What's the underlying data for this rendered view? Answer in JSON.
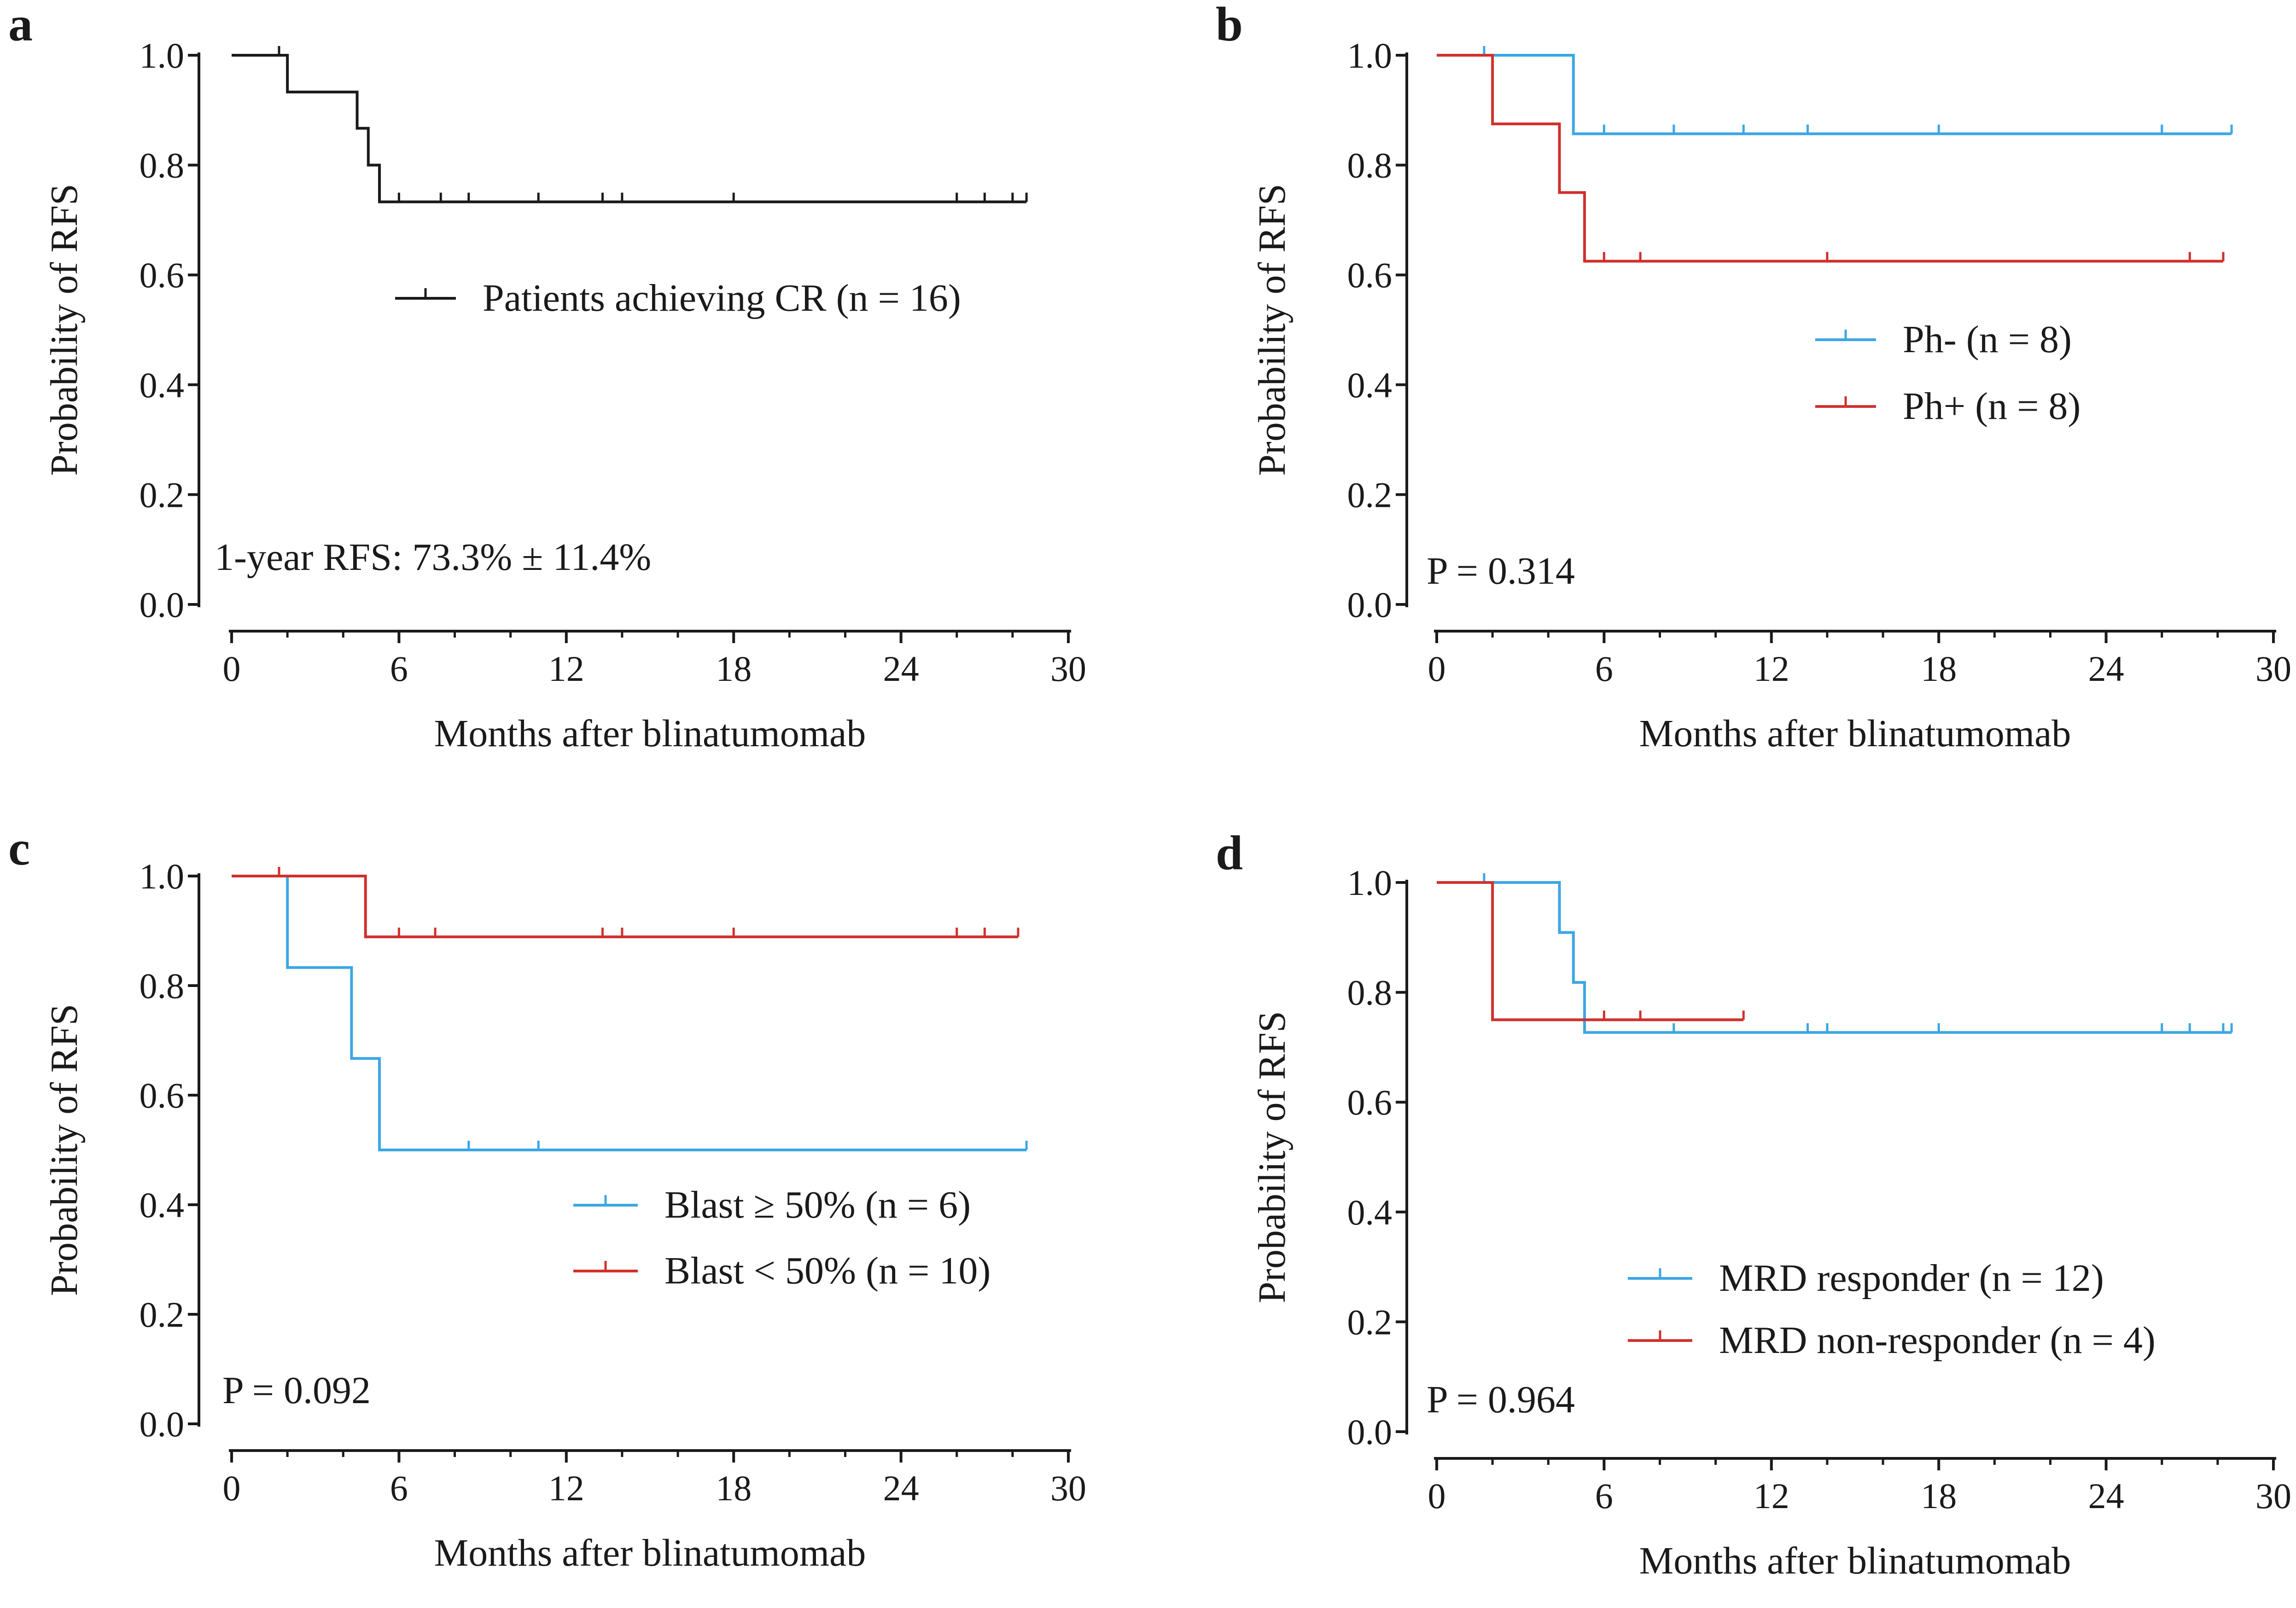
{
  "colors": {
    "black": "#1a1a1a",
    "blue": "#3ca6e4",
    "red": "#d0312d"
  },
  "chart_data": [
    {
      "id": "a",
      "panel_label": "a",
      "type": "line",
      "subtype": "kaplan-meier",
      "xlabel": "Months after blinatumomab",
      "ylabel": "Probability of RFS",
      "xlim": [
        0,
        30
      ],
      "ylim": [
        0,
        1
      ],
      "xticks": [
        "0",
        "6",
        "12",
        "18",
        "24",
        "30"
      ],
      "yticks": [
        "0.0",
        "0.2",
        "0.4",
        "0.6",
        "0.8",
        "1.0"
      ],
      "legend_position": "center-right",
      "annotation": "1-year RFS: 73.3% ± 11.4%",
      "annotation_position": "bottom-left",
      "series": [
        {
          "name": "Patients achieving CR (n = 16)",
          "color": "#1a1a1a",
          "steps": [
            [
              0,
              1.0
            ],
            [
              2.0,
              0.933
            ],
            [
              4.5,
              0.867
            ],
            [
              4.9,
              0.8
            ],
            [
              5.3,
              0.733
            ],
            [
              28.5,
              0.733
            ]
          ],
          "censor_marks": [
            [
              1.7,
              1.0
            ],
            [
              6.0,
              0.733
            ],
            [
              7.5,
              0.733
            ],
            [
              8.5,
              0.733
            ],
            [
              11.0,
              0.733
            ],
            [
              13.3,
              0.733
            ],
            [
              14.0,
              0.733
            ],
            [
              18.0,
              0.733
            ],
            [
              26.0,
              0.733
            ],
            [
              27.0,
              0.733
            ],
            [
              28.0,
              0.733
            ],
            [
              28.5,
              0.733
            ]
          ]
        }
      ]
    },
    {
      "id": "b",
      "panel_label": "b",
      "type": "line",
      "subtype": "kaplan-meier",
      "xlabel": "Months after blinatumomab",
      "ylabel": "Probability of RFS",
      "xlim": [
        0,
        30
      ],
      "ylim": [
        0,
        1
      ],
      "xticks": [
        "0",
        "6",
        "12",
        "18",
        "24",
        "30"
      ],
      "yticks": [
        "0.0",
        "0.2",
        "0.4",
        "0.6",
        "0.8",
        "1.0"
      ],
      "legend_position": "center-right",
      "annotation": "P = 0.314",
      "annotation_position": "bottom-left",
      "series": [
        {
          "name": "Ph- (n = 8)",
          "color": "#3ca6e4",
          "steps": [
            [
              0,
              1.0
            ],
            [
              4.9,
              0.857
            ],
            [
              28.5,
              0.857
            ]
          ],
          "censor_marks": [
            [
              1.7,
              1.0
            ],
            [
              6.0,
              0.857
            ],
            [
              8.5,
              0.857
            ],
            [
              11.0,
              0.857
            ],
            [
              13.3,
              0.857
            ],
            [
              18.0,
              0.857
            ],
            [
              26.0,
              0.857
            ],
            [
              28.5,
              0.857
            ]
          ]
        },
        {
          "name": "Ph+ (n = 8)",
          "color": "#d0312d",
          "steps": [
            [
              0,
              1.0
            ],
            [
              2.0,
              0.875
            ],
            [
              4.4,
              0.75
            ],
            [
              5.3,
              0.625
            ],
            [
              28.2,
              0.625
            ]
          ],
          "censor_marks": [
            [
              6.0,
              0.625
            ],
            [
              7.3,
              0.625
            ],
            [
              14.0,
              0.625
            ],
            [
              27.0,
              0.625
            ],
            [
              28.2,
              0.625
            ]
          ]
        }
      ]
    },
    {
      "id": "c",
      "panel_label": "c",
      "type": "line",
      "subtype": "kaplan-meier",
      "xlabel": "Months after blinatumomab",
      "ylabel": "Probability of RFS",
      "xlim": [
        0,
        30
      ],
      "ylim": [
        0,
        1
      ],
      "xticks": [
        "0",
        "6",
        "12",
        "18",
        "24",
        "30"
      ],
      "yticks": [
        "0.0",
        "0.2",
        "0.4",
        "0.6",
        "0.8",
        "1.0"
      ],
      "legend_position": "bottom-right",
      "annotation": "P = 0.092",
      "annotation_position": "bottom-left",
      "series": [
        {
          "name": "Blast ≥ 50% (n = 6)",
          "color": "#3ca6e4",
          "steps": [
            [
              0,
              1.0
            ],
            [
              2.0,
              0.833
            ],
            [
              4.3,
              0.667
            ],
            [
              5.3,
              0.5
            ],
            [
              28.5,
              0.5
            ]
          ],
          "censor_marks": [
            [
              8.5,
              0.5
            ],
            [
              11.0,
              0.5
            ],
            [
              28.5,
              0.5
            ]
          ]
        },
        {
          "name": "Blast < 50% (n = 10)",
          "color": "#d0312d",
          "steps": [
            [
              0,
              1.0
            ],
            [
              4.8,
              0.889
            ],
            [
              28.2,
              0.889
            ]
          ],
          "censor_marks": [
            [
              1.7,
              1.0
            ],
            [
              6.0,
              0.889
            ],
            [
              7.3,
              0.889
            ],
            [
              13.3,
              0.889
            ],
            [
              14.0,
              0.889
            ],
            [
              18.0,
              0.889
            ],
            [
              26.0,
              0.889
            ],
            [
              27.0,
              0.889
            ],
            [
              28.2,
              0.889
            ]
          ]
        }
      ]
    },
    {
      "id": "d",
      "panel_label": "d",
      "type": "line",
      "subtype": "kaplan-meier",
      "xlabel": "Months after blinatumomab",
      "ylabel": "Probability of RFS",
      "xlim": [
        0,
        30
      ],
      "ylim": [
        0,
        1
      ],
      "xticks": [
        "0",
        "6",
        "12",
        "18",
        "24",
        "30"
      ],
      "yticks": [
        "0.0",
        "0.2",
        "0.4",
        "0.6",
        "0.8",
        "1.0"
      ],
      "legend_position": "bottom-right",
      "annotation": "P = 0.964",
      "annotation_position": "bottom-left",
      "series": [
        {
          "name": "MRD responder (n = 12)",
          "color": "#3ca6e4",
          "steps": [
            [
              0,
              1.0
            ],
            [
              4.4,
              0.909
            ],
            [
              4.9,
              0.818
            ],
            [
              5.3,
              0.727
            ],
            [
              28.5,
              0.727
            ]
          ],
          "censor_marks": [
            [
              1.7,
              1.0
            ],
            [
              8.5,
              0.727
            ],
            [
              13.3,
              0.727
            ],
            [
              14.0,
              0.727
            ],
            [
              18.0,
              0.727
            ],
            [
              26.0,
              0.727
            ],
            [
              27.0,
              0.727
            ],
            [
              28.2,
              0.727
            ],
            [
              28.5,
              0.727
            ]
          ]
        },
        {
          "name": "MRD non-responder (n = 4)",
          "color": "#d0312d",
          "steps": [
            [
              0,
              1.0
            ],
            [
              2.0,
              0.75
            ],
            [
              11.0,
              0.75
            ]
          ],
          "censor_marks": [
            [
              6.0,
              0.75
            ],
            [
              7.3,
              0.75
            ],
            [
              11.0,
              0.75
            ]
          ]
        }
      ]
    }
  ]
}
